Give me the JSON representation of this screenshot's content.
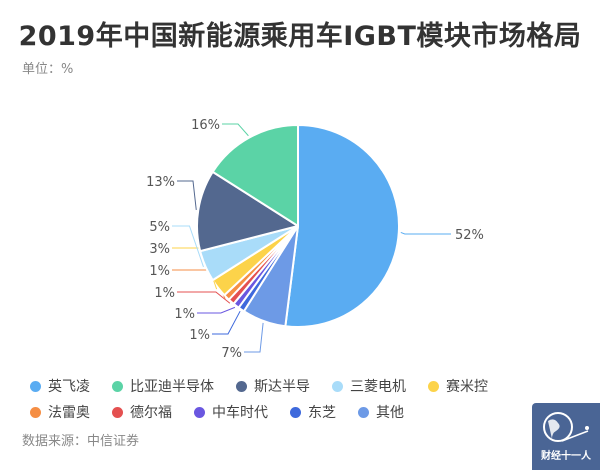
{
  "chart_data": {
    "type": "pie",
    "title": "2019年中国新能源乘用车IGBT模块市场格局",
    "unit_label": "单位：%",
    "source": "数据来源：中信证券",
    "legend_position": "bottom",
    "slices": [
      {
        "name": "英飞凌",
        "value": 52,
        "label": "52%",
        "color": "#5aacf2"
      },
      {
        "name": "其他",
        "value": 7,
        "label": "7%",
        "color": "#6d9ae6"
      },
      {
        "name": "东芝",
        "value": 1,
        "label": "1%",
        "color": "#3e69dc"
      },
      {
        "name": "中车时代",
        "value": 1,
        "label": "1%",
        "color": "#6a57e0"
      },
      {
        "name": "德尔福",
        "value": 1,
        "label": "1%",
        "color": "#e45050"
      },
      {
        "name": "法雷奥",
        "value": 1,
        "label": "1%",
        "color": "#f58e44"
      },
      {
        "name": "赛米控",
        "value": 3,
        "label": "3%",
        "color": "#fcd34a"
      },
      {
        "name": "三菱电机",
        "value": 5,
        "label": "5%",
        "color": "#a9dcf9"
      },
      {
        "name": "斯达半导",
        "value": 13,
        "label": "13%",
        "color": "#53688f"
      },
      {
        "name": "比亚迪半导体",
        "value": 16,
        "label": "16%",
        "color": "#5bd3a6"
      }
    ],
    "legend_order": [
      "英飞凌",
      "比亚迪半导体",
      "斯达半导",
      "三菱电机",
      "赛米控",
      "法雷奥",
      "德尔福",
      "中车时代",
      "东芝",
      "其他"
    ]
  },
  "logo": {
    "text": "财经十一人",
    "color": "#4a6595"
  }
}
